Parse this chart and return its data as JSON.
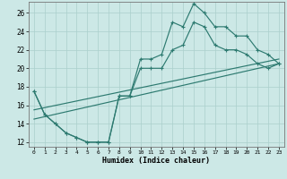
{
  "xlabel": "Humidex (Indice chaleur)",
  "background_color": "#cce8e6",
  "grid_color": "#aacfcc",
  "line_color": "#2d7a70",
  "xlim": [
    -0.5,
    23.5
  ],
  "ylim": [
    11.5,
    27.2
  ],
  "xticks": [
    0,
    1,
    2,
    3,
    4,
    5,
    6,
    7,
    8,
    9,
    10,
    11,
    12,
    13,
    14,
    15,
    16,
    17,
    18,
    19,
    20,
    21,
    22,
    23
  ],
  "yticks": [
    12,
    14,
    16,
    18,
    20,
    22,
    24,
    26
  ],
  "line1_x": [
    0,
    1,
    2,
    3,
    4,
    5,
    6,
    7,
    8,
    9,
    10,
    11,
    12,
    13,
    14,
    15,
    16,
    17,
    18,
    19,
    20,
    21,
    22,
    23
  ],
  "line1_y": [
    17.5,
    15.0,
    14.0,
    13.0,
    12.5,
    12.0,
    12.0,
    12.0,
    17.0,
    17.0,
    21.0,
    21.0,
    21.5,
    25.0,
    24.5,
    27.0,
    26.0,
    24.5,
    24.5,
    23.5,
    23.5,
    22.0,
    21.5,
    20.5
  ],
  "line2_x": [
    0,
    1,
    2,
    3,
    4,
    5,
    6,
    7,
    8,
    9,
    10,
    11,
    12,
    13,
    14,
    15,
    16,
    17,
    18,
    19,
    20,
    21,
    22,
    23
  ],
  "line2_y": [
    17.5,
    15.0,
    14.0,
    13.0,
    12.5,
    12.0,
    12.0,
    12.0,
    17.0,
    17.0,
    20.0,
    20.0,
    20.0,
    22.0,
    22.5,
    25.0,
    24.5,
    22.5,
    22.0,
    22.0,
    21.5,
    20.5,
    20.0,
    20.5
  ],
  "line3_x": [
    0,
    23
  ],
  "line3_y": [
    14.5,
    20.5
  ],
  "line4_x": [
    0,
    23
  ],
  "line4_y": [
    15.5,
    21.0
  ]
}
